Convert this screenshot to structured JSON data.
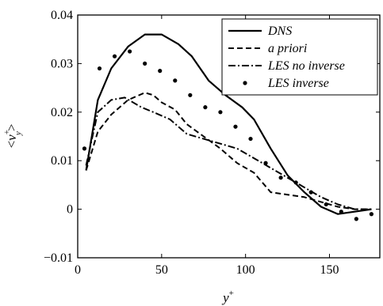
{
  "chart_data": {
    "type": "line",
    "xlabel": "y",
    "xlabel_sup": "+",
    "ylabel_open": "<",
    "ylabel_v": "v",
    "ylabel_sup": "+",
    "ylabel_sub": "y",
    "ylabel_close": ">",
    "xlim": [
      0,
      180
    ],
    "ylim": [
      -0.01,
      0.04
    ],
    "xticks": [
      0,
      50,
      100,
      150
    ],
    "xtick_labels": [
      "0",
      "50",
      "100",
      "150"
    ],
    "yticks": [
      -0.01,
      0,
      0.01,
      0.02,
      0.03,
      0.04
    ],
    "ytick_labels": [
      "−0.01",
      "0",
      "0.01",
      "0.02",
      "0.03",
      "0.04"
    ],
    "grid": false,
    "legend_position": "top-right",
    "series": [
      {
        "name": "DNS",
        "style": "solid",
        "x": [
          5,
          12,
          20,
          30,
          40,
          50,
          60,
          68,
          78,
          88,
          98,
          105,
          115,
          125,
          135,
          145,
          155,
          165,
          175
        ],
        "y": [
          0.008,
          0.0225,
          0.029,
          0.0335,
          0.036,
          0.036,
          0.034,
          0.0315,
          0.0265,
          0.0235,
          0.021,
          0.0185,
          0.0125,
          0.007,
          0.0035,
          0.0005,
          -0.001,
          -0.0005,
          0.0
        ]
      },
      {
        "name": "a priori",
        "style": "dashed",
        "x": [
          5,
          12,
          20,
          30,
          40,
          45,
          50,
          58,
          65,
          75,
          85,
          95,
          105,
          115,
          125,
          135,
          145,
          155,
          165,
          175
        ],
        "y": [
          0.008,
          0.016,
          0.0195,
          0.0225,
          0.024,
          0.0235,
          0.022,
          0.0205,
          0.0175,
          0.015,
          0.0125,
          0.0095,
          0.0075,
          0.0035,
          0.003,
          0.0025,
          0.0015,
          0.0005,
          0.0,
          0.0
        ]
      },
      {
        "name": "LES no inverse",
        "style": "dashdot",
        "x": [
          5,
          12,
          20,
          28,
          38,
          45,
          55,
          65,
          75,
          85,
          95,
          105,
          115,
          125,
          135,
          145,
          155,
          165,
          175
        ],
        "y": [
          0.009,
          0.02,
          0.0225,
          0.023,
          0.021,
          0.02,
          0.0185,
          0.0155,
          0.0145,
          0.0135,
          0.0125,
          0.0105,
          0.0085,
          0.0065,
          0.0045,
          0.0025,
          0.001,
          0.0,
          0.0
        ]
      },
      {
        "name": "LES inverse",
        "style": "dots",
        "x": [
          4,
          13,
          22,
          31,
          40,
          49,
          58,
          67,
          76,
          85,
          94,
          103,
          112,
          121,
          130,
          139,
          148,
          157,
          166,
          175
        ],
        "y": [
          0.0125,
          0.029,
          0.0315,
          0.0325,
          0.03,
          0.0285,
          0.0265,
          0.0235,
          0.021,
          0.02,
          0.017,
          0.0145,
          0.0095,
          0.0065,
          0.0055,
          0.0035,
          0.001,
          -0.0005,
          -0.002,
          -0.001
        ]
      }
    ]
  }
}
